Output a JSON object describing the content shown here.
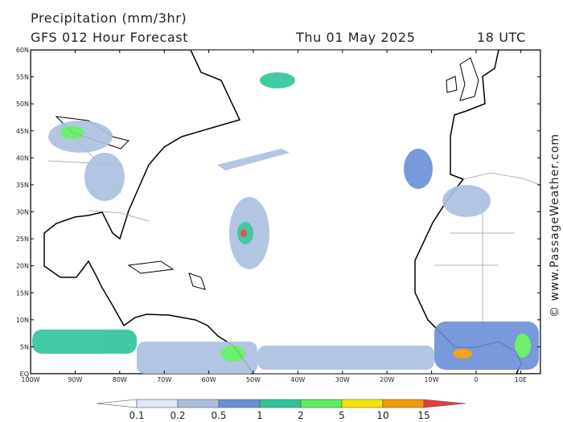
{
  "header": {
    "title": "Precipitation (mm/3hr)",
    "subtitle": "GFS 012 Hour Forecast",
    "date": "Thu 01 May 2025",
    "time": "18 UTC"
  },
  "map": {
    "lat_labels": [
      "60N",
      "55N",
      "50N",
      "45N",
      "40N",
      "35N",
      "30N",
      "25N",
      "20N",
      "15N",
      "10N",
      "5N",
      "EQ"
    ],
    "lon_labels": [
      "100W",
      "90W",
      "80W",
      "70W",
      "60W",
      "50W",
      "40W",
      "30W",
      "20W",
      "10W",
      "0",
      "10E"
    ]
  },
  "legend": {
    "labels": [
      "0.1",
      "0.2",
      "0.5",
      "1",
      "2",
      "5",
      "10",
      "15"
    ],
    "colors": [
      "#ffffff",
      "#e0eaf6",
      "#aabfe0",
      "#6a8fd6",
      "#2ec49a",
      "#5cf05c",
      "#f7e400",
      "#f59a00",
      "#e63c3c"
    ]
  },
  "credit": "© www.PassageWeather.com"
}
